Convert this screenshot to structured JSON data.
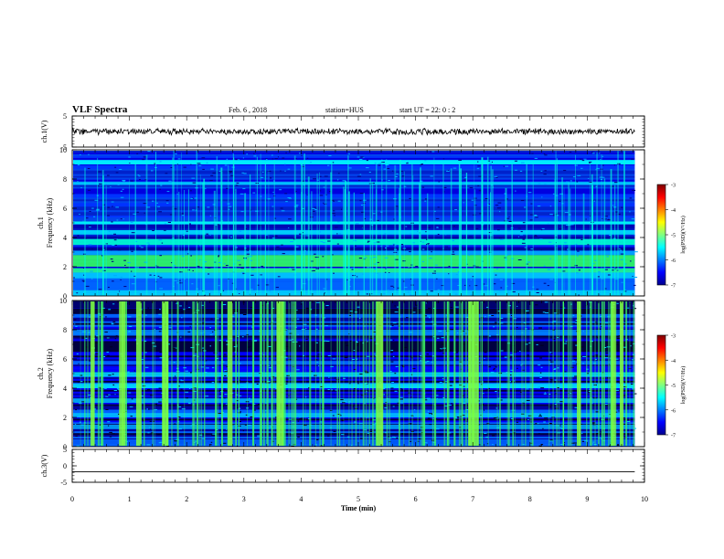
{
  "header": {
    "title": "VLF Spectra",
    "date": "Feb. 6 , 2018",
    "station": "station=HUS",
    "start": "start UT =  22: 0 : 2"
  },
  "colorbar": {
    "label": "log(PSD)(V²/Hz)",
    "ticks": [
      -3,
      -4,
      -5,
      -6,
      -7
    ],
    "range": [
      -7,
      -3
    ],
    "colormap": [
      "#00008f",
      "#0000ff",
      "#0080ff",
      "#00ffff",
      "#80ff80",
      "#ffff00",
      "#ff8000",
      "#ff0000",
      "#800000"
    ]
  },
  "chart_data": [
    {
      "type": "line",
      "panel": "ch1-waveform",
      "ylabel": "ch.1(V)",
      "ylim": [
        -5,
        5
      ],
      "yticks": [
        5,
        -5
      ],
      "xlim": [
        0,
        10
      ],
      "series": [
        {
          "x": [
            0,
            9.83
          ],
          "y": [
            0,
            0
          ]
        }
      ],
      "style": {
        "color": "#000000",
        "noise": "high-frequency"
      }
    },
    {
      "type": "heatmap",
      "panel": "ch1-spectrogram",
      "ylabel_top": "ch.1",
      "ylabel": "Frequency (kHz)",
      "ylim": [
        0,
        10
      ],
      "yticks": [
        0,
        2,
        4,
        6,
        8,
        10
      ],
      "xlim": [
        0,
        10
      ],
      "data_end_min": 9.83,
      "base_colors": [
        "#0000e0",
        "#0033ff",
        "#0044ee",
        "#0022cc"
      ],
      "bands": [
        {
          "f0": 0.0,
          "f1": 0.4,
          "color": "#00d8ff"
        },
        {
          "f0": 0.4,
          "f1": 1.2,
          "color": "#0066ff"
        },
        {
          "f0": 1.2,
          "f1": 1.6,
          "color": "#00ccff"
        },
        {
          "f0": 1.6,
          "f1": 1.9,
          "color": "#20ff90"
        },
        {
          "f0": 2.0,
          "f1": 2.8,
          "color": "#30ff60"
        },
        {
          "f0": 2.8,
          "f1": 3.1,
          "color": "#00aaff"
        },
        {
          "f0": 3.1,
          "f1": 3.3,
          "color": "#000090"
        },
        {
          "f0": 3.5,
          "f1": 3.9,
          "color": "#00ffcc"
        },
        {
          "f0": 3.9,
          "f1": 4.1,
          "color": "#0000a0"
        },
        {
          "f0": 4.2,
          "f1": 4.5,
          "color": "#00e0ff"
        },
        {
          "f0": 4.6,
          "f1": 4.9,
          "color": "#0000b0"
        },
        {
          "f0": 4.9,
          "f1": 5.1,
          "color": "#00ffff"
        },
        {
          "f0": 7.6,
          "f1": 7.8,
          "color": "#00ccff"
        },
        {
          "f0": 9.0,
          "f1": 9.3,
          "color": "#00ffff"
        }
      ],
      "spikes": {
        "count": 110,
        "color": "#00ffdd"
      }
    },
    {
      "type": "heatmap",
      "panel": "ch2-spectrogram",
      "ylabel_top": "ch.2",
      "ylabel": "Frequency (kHz)",
      "ylim": [
        0,
        10
      ],
      "yticks": [
        0,
        2,
        4,
        6,
        8,
        10
      ],
      "xlim": [
        0,
        10
      ],
      "data_end_min": 9.83,
      "base_colors": [
        "#000040",
        "#0000a0",
        "#0000ff",
        "#0060ff"
      ],
      "bands": [
        {
          "f0": 0.0,
          "f1": 0.5,
          "color": "#0060ff"
        },
        {
          "f0": 1.2,
          "f1": 1.5,
          "color": "#00a0ff"
        },
        {
          "f0": 2.0,
          "f1": 2.3,
          "color": "#00c0ff"
        },
        {
          "f0": 3.0,
          "f1": 3.3,
          "color": "#00b0ff"
        },
        {
          "f0": 4.0,
          "f1": 4.3,
          "color": "#00e0ff"
        },
        {
          "f0": 4.8,
          "f1": 5.1,
          "color": "#00d0ff"
        },
        {
          "f0": 7.6,
          "f1": 8.0,
          "color": "#0080ff"
        },
        {
          "f0": 9.5,
          "f1": 10.0,
          "color": "#000060"
        }
      ],
      "spikes": {
        "count": 190,
        "color": "#40ff60",
        "strong_at_min": [
          0.35,
          0.85,
          1.15,
          1.6,
          2.75,
          3.6,
          5.35,
          6.95,
          7.05,
          8.85,
          9.45,
          9.6
        ]
      }
    },
    {
      "type": "line",
      "panel": "ch3-waveform",
      "ylabel": "ch.3(V)",
      "ylim": [
        -5,
        5
      ],
      "yticks": [
        5,
        0,
        -5
      ],
      "xlim": [
        0,
        10
      ],
      "xlabel": "Time (min)",
      "xticks": [
        0,
        1,
        2,
        3,
        4,
        5,
        6,
        7,
        8,
        9,
        10
      ],
      "series": [
        {
          "x": [
            0,
            9.83
          ],
          "y": [
            -1.8,
            -1.8
          ]
        }
      ],
      "style": {
        "color": "#000000",
        "noise": "none"
      }
    }
  ]
}
